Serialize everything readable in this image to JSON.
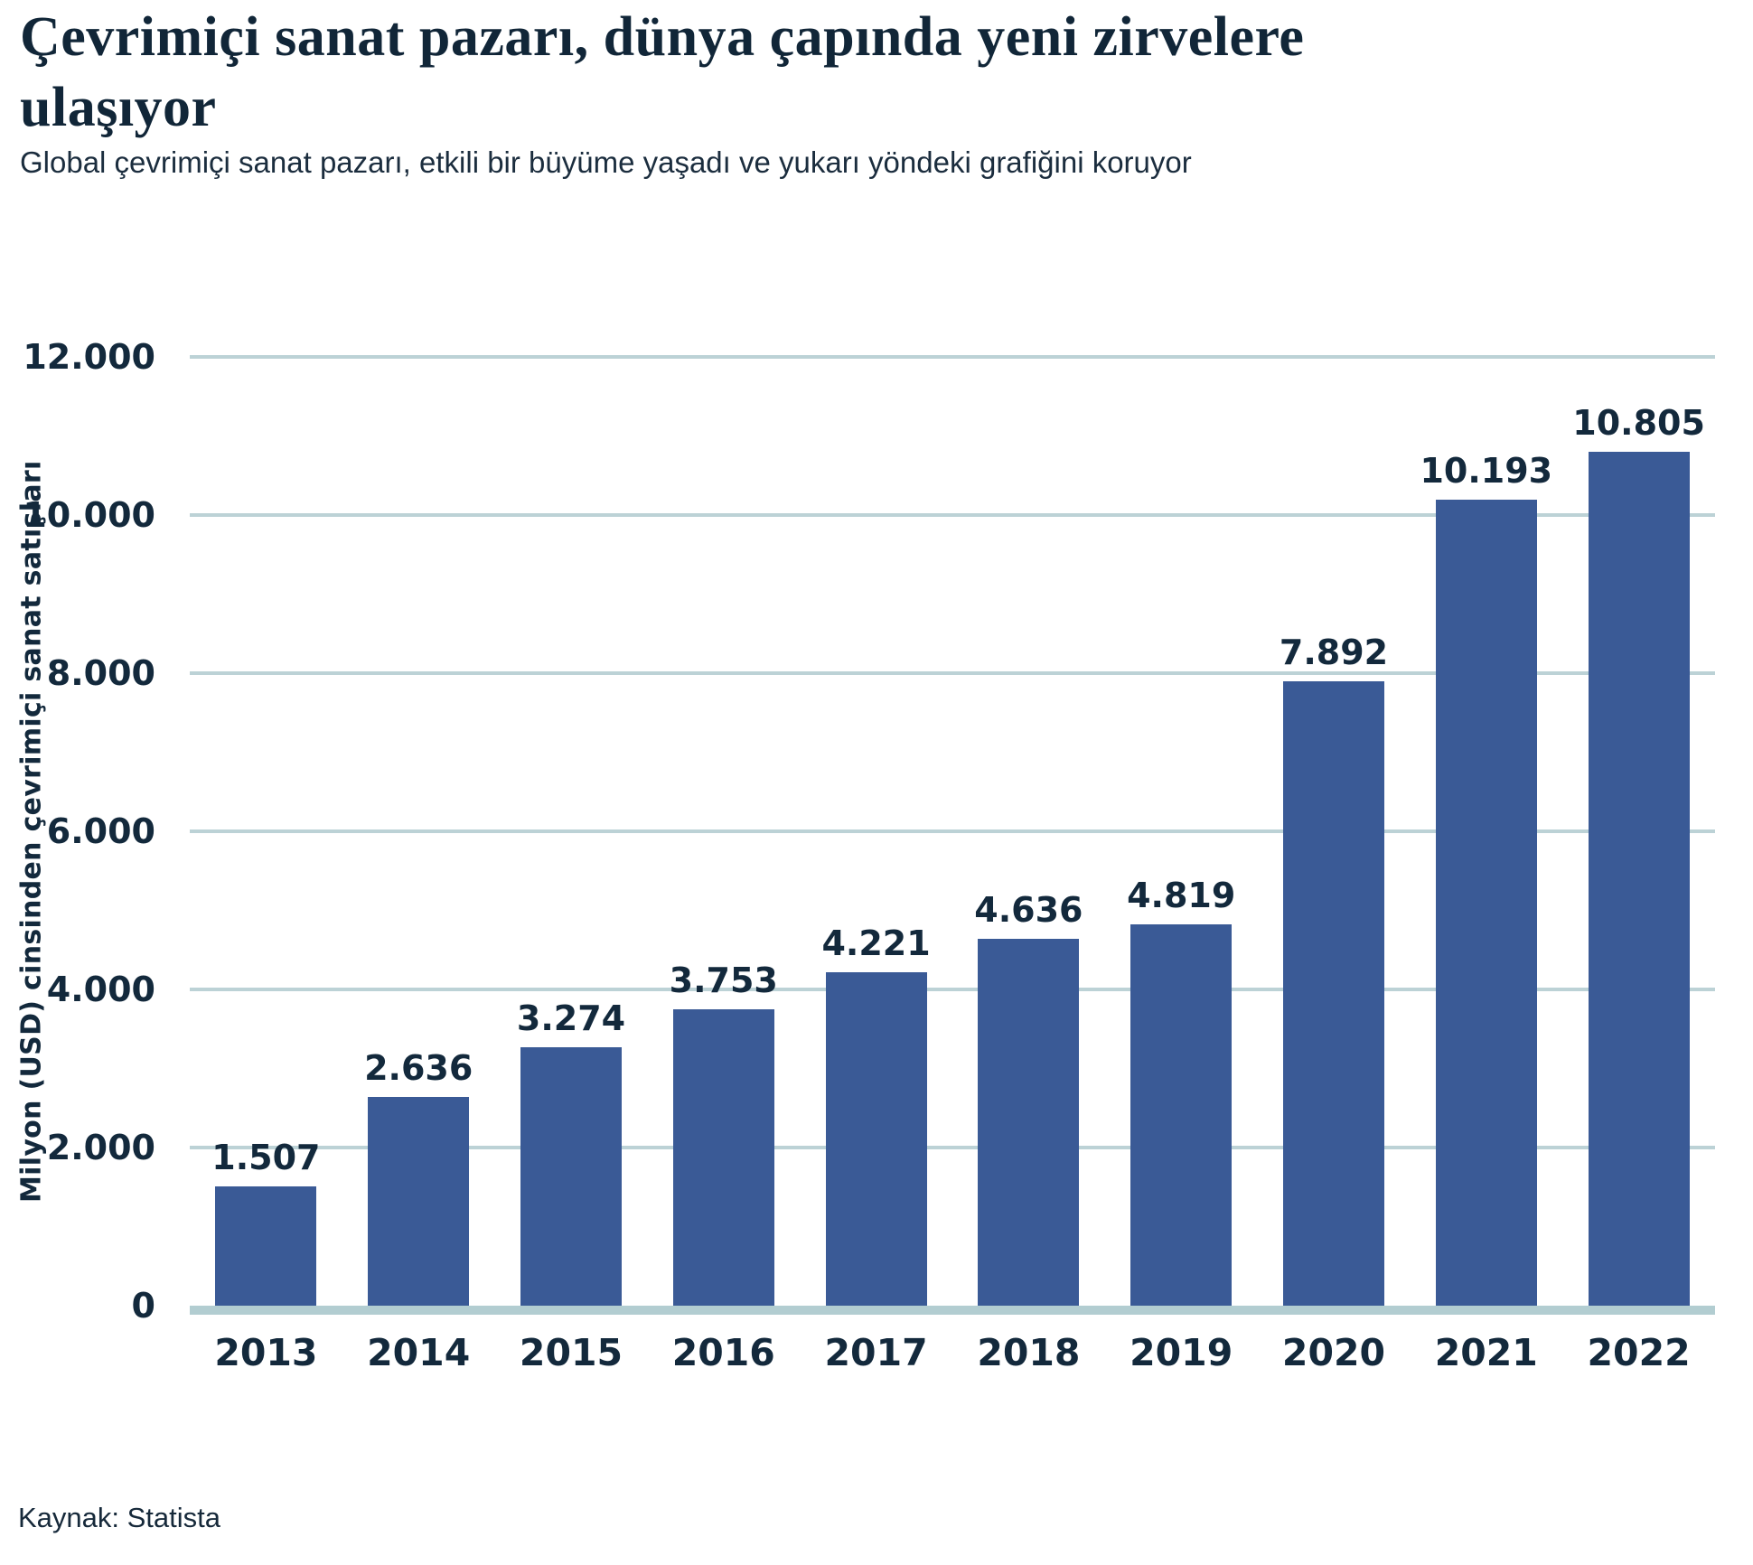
{
  "header": {
    "title": "Çevrimiçi sanat pazarı, dünya çapında yeni zirvelere ulaşıyor",
    "subtitle": "Global çevrimiçi sanat pazarı, etkili bir büyüme yaşadı ve yukarı yöndeki grafiğini koruyor"
  },
  "footer": {
    "source": "Kaynak: Statista"
  },
  "chart_data": {
    "type": "bar",
    "title": "Çevrimiçi sanat pazarı, dünya çapında yeni zirvelere ulaşıyor",
    "subtitle": "Global çevrimiçi sanat pazarı, etkili bir büyüme yaşadı ve yukarı yöndeki grafiğini koruyor",
    "categories": [
      "2013",
      "2014",
      "2015",
      "2016",
      "2017",
      "2018",
      "2019",
      "2020",
      "2021",
      "2022"
    ],
    "values": [
      1507,
      2636,
      3274,
      3753,
      4221,
      4636,
      4819,
      7892,
      10193,
      10805
    ],
    "value_labels": [
      "1.507",
      "2.636",
      "3.274",
      "3.753",
      "4.221",
      "4.636",
      "4.819",
      "7.892",
      "10.193",
      "10.805"
    ],
    "xlabel": "",
    "ylabel": "Milyon (USD) cinsinden çevrimiçi sanat satışları",
    "ylim": [
      0,
      12000
    ],
    "y_ticks": [
      0,
      2000,
      4000,
      6000,
      8000,
      10000,
      12000
    ],
    "y_tick_labels": [
      "0",
      "2.000",
      "4.000",
      "6.000",
      "8.000",
      "10.000",
      "12.000"
    ],
    "grid": "horizontal-only",
    "legend": "none",
    "source": "Kaynak: Statista",
    "colors": {
      "bar": "#3A5A96",
      "gridline": "#BCD2D6",
      "baseline": "#B2CDD1",
      "text": "#13293C",
      "title": "#112638",
      "background": "#FFFFFF"
    }
  }
}
